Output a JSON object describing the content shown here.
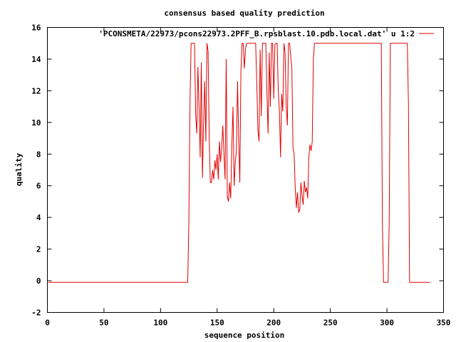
{
  "chart_data": {
    "type": "line",
    "title": "consensus based quality prediction",
    "xlabel": "sequence position",
    "ylabel": "quality",
    "xlim": [
      0,
      350
    ],
    "ylim": [
      -2,
      16
    ],
    "xticks": [
      0,
      50,
      100,
      150,
      200,
      250,
      300,
      350
    ],
    "yticks": [
      -2,
      0,
      2,
      4,
      6,
      8,
      10,
      12,
      14,
      16
    ],
    "grid": false,
    "legend_position": "top-right",
    "series": [
      {
        "name": "'PCONSMETA/22973/pcons22973.2PFF_B.rpsblast.10.pdb.local.dat' u 1:2",
        "color": "#e00000",
        "points": [
          [
            1,
            -0.1
          ],
          [
            124,
            -0.1
          ],
          [
            125,
            3.7
          ],
          [
            126,
            11.2
          ],
          [
            127,
            15
          ],
          [
            130,
            15
          ],
          [
            131,
            10.5
          ],
          [
            132,
            9.3
          ],
          [
            133,
            13.5
          ],
          [
            134,
            11
          ],
          [
            135,
            7.8
          ],
          [
            136,
            13.8
          ],
          [
            137,
            6.5
          ],
          [
            138,
            10
          ],
          [
            139,
            12.6
          ],
          [
            140,
            8.8
          ],
          [
            141,
            15
          ],
          [
            142,
            14.5
          ],
          [
            143,
            8.9
          ],
          [
            144,
            6.2
          ],
          [
            145,
            6.2
          ],
          [
            146,
            7
          ],
          [
            147,
            6.4
          ],
          [
            148,
            7.6
          ],
          [
            149,
            7
          ],
          [
            150,
            8
          ],
          [
            151,
            6.4
          ],
          [
            152,
            8.8
          ],
          [
            153,
            7.5
          ],
          [
            154,
            8.4
          ],
          [
            155,
            9.8
          ],
          [
            156,
            8
          ],
          [
            157,
            6.4
          ],
          [
            158,
            14
          ],
          [
            159,
            5.3
          ],
          [
            160,
            5
          ],
          [
            161,
            6.2
          ],
          [
            162,
            5.2
          ],
          [
            163,
            8.6
          ],
          [
            164,
            11
          ],
          [
            165,
            6
          ],
          [
            166,
            7.5
          ],
          [
            167,
            8.2
          ],
          [
            168,
            12.6
          ],
          [
            169,
            9
          ],
          [
            170,
            6.2
          ],
          [
            171,
            13.3
          ],
          [
            172,
            15
          ],
          [
            173,
            15
          ],
          [
            174,
            13.4
          ],
          [
            175,
            14.6
          ],
          [
            176,
            15
          ],
          [
            184,
            15
          ],
          [
            185,
            12.5
          ],
          [
            186,
            9.5
          ],
          [
            187,
            8.8
          ],
          [
            188,
            14.6
          ],
          [
            189,
            10.4
          ],
          [
            190,
            15
          ],
          [
            193,
            15
          ],
          [
            194,
            11.8
          ],
          [
            195,
            9.3
          ],
          [
            196,
            14.4
          ],
          [
            197,
            11
          ],
          [
            198,
            15
          ],
          [
            199,
            15
          ],
          [
            200,
            11.5
          ],
          [
            201,
            14.9
          ],
          [
            202,
            15
          ],
          [
            203,
            15
          ],
          [
            204,
            12
          ],
          [
            205,
            10.7
          ],
          [
            206,
            7.8
          ],
          [
            207,
            11.8
          ],
          [
            208,
            10.7
          ],
          [
            209,
            15
          ],
          [
            210,
            14.4
          ],
          [
            211,
            11
          ],
          [
            212,
            9.8
          ],
          [
            213,
            15
          ],
          [
            214,
            15
          ],
          [
            215,
            14.2
          ],
          [
            216,
            13.4
          ],
          [
            217,
            8.4
          ],
          [
            218,
            8
          ],
          [
            219,
            5.8
          ],
          [
            220,
            4.6
          ],
          [
            221,
            5.6
          ],
          [
            222,
            4.3
          ],
          [
            223,
            4.5
          ],
          [
            224,
            6.2
          ],
          [
            225,
            5.4
          ],
          [
            226,
            4.8
          ],
          [
            227,
            6.3
          ],
          [
            228,
            5.6
          ],
          [
            229,
            5.9
          ],
          [
            230,
            5.2
          ],
          [
            231,
            7.8
          ],
          [
            232,
            8.6
          ],
          [
            233,
            8.2
          ],
          [
            234,
            8.8
          ],
          [
            235,
            14
          ],
          [
            236,
            15
          ],
          [
            295,
            15
          ],
          [
            296,
            3.6
          ],
          [
            297,
            -0.1
          ],
          [
            301,
            -0.1
          ],
          [
            302,
            3.7
          ],
          [
            303,
            15
          ],
          [
            318,
            15
          ],
          [
            319,
            11.2
          ],
          [
            320,
            -0.1
          ],
          [
            338,
            -0.1
          ]
        ]
      }
    ]
  }
}
